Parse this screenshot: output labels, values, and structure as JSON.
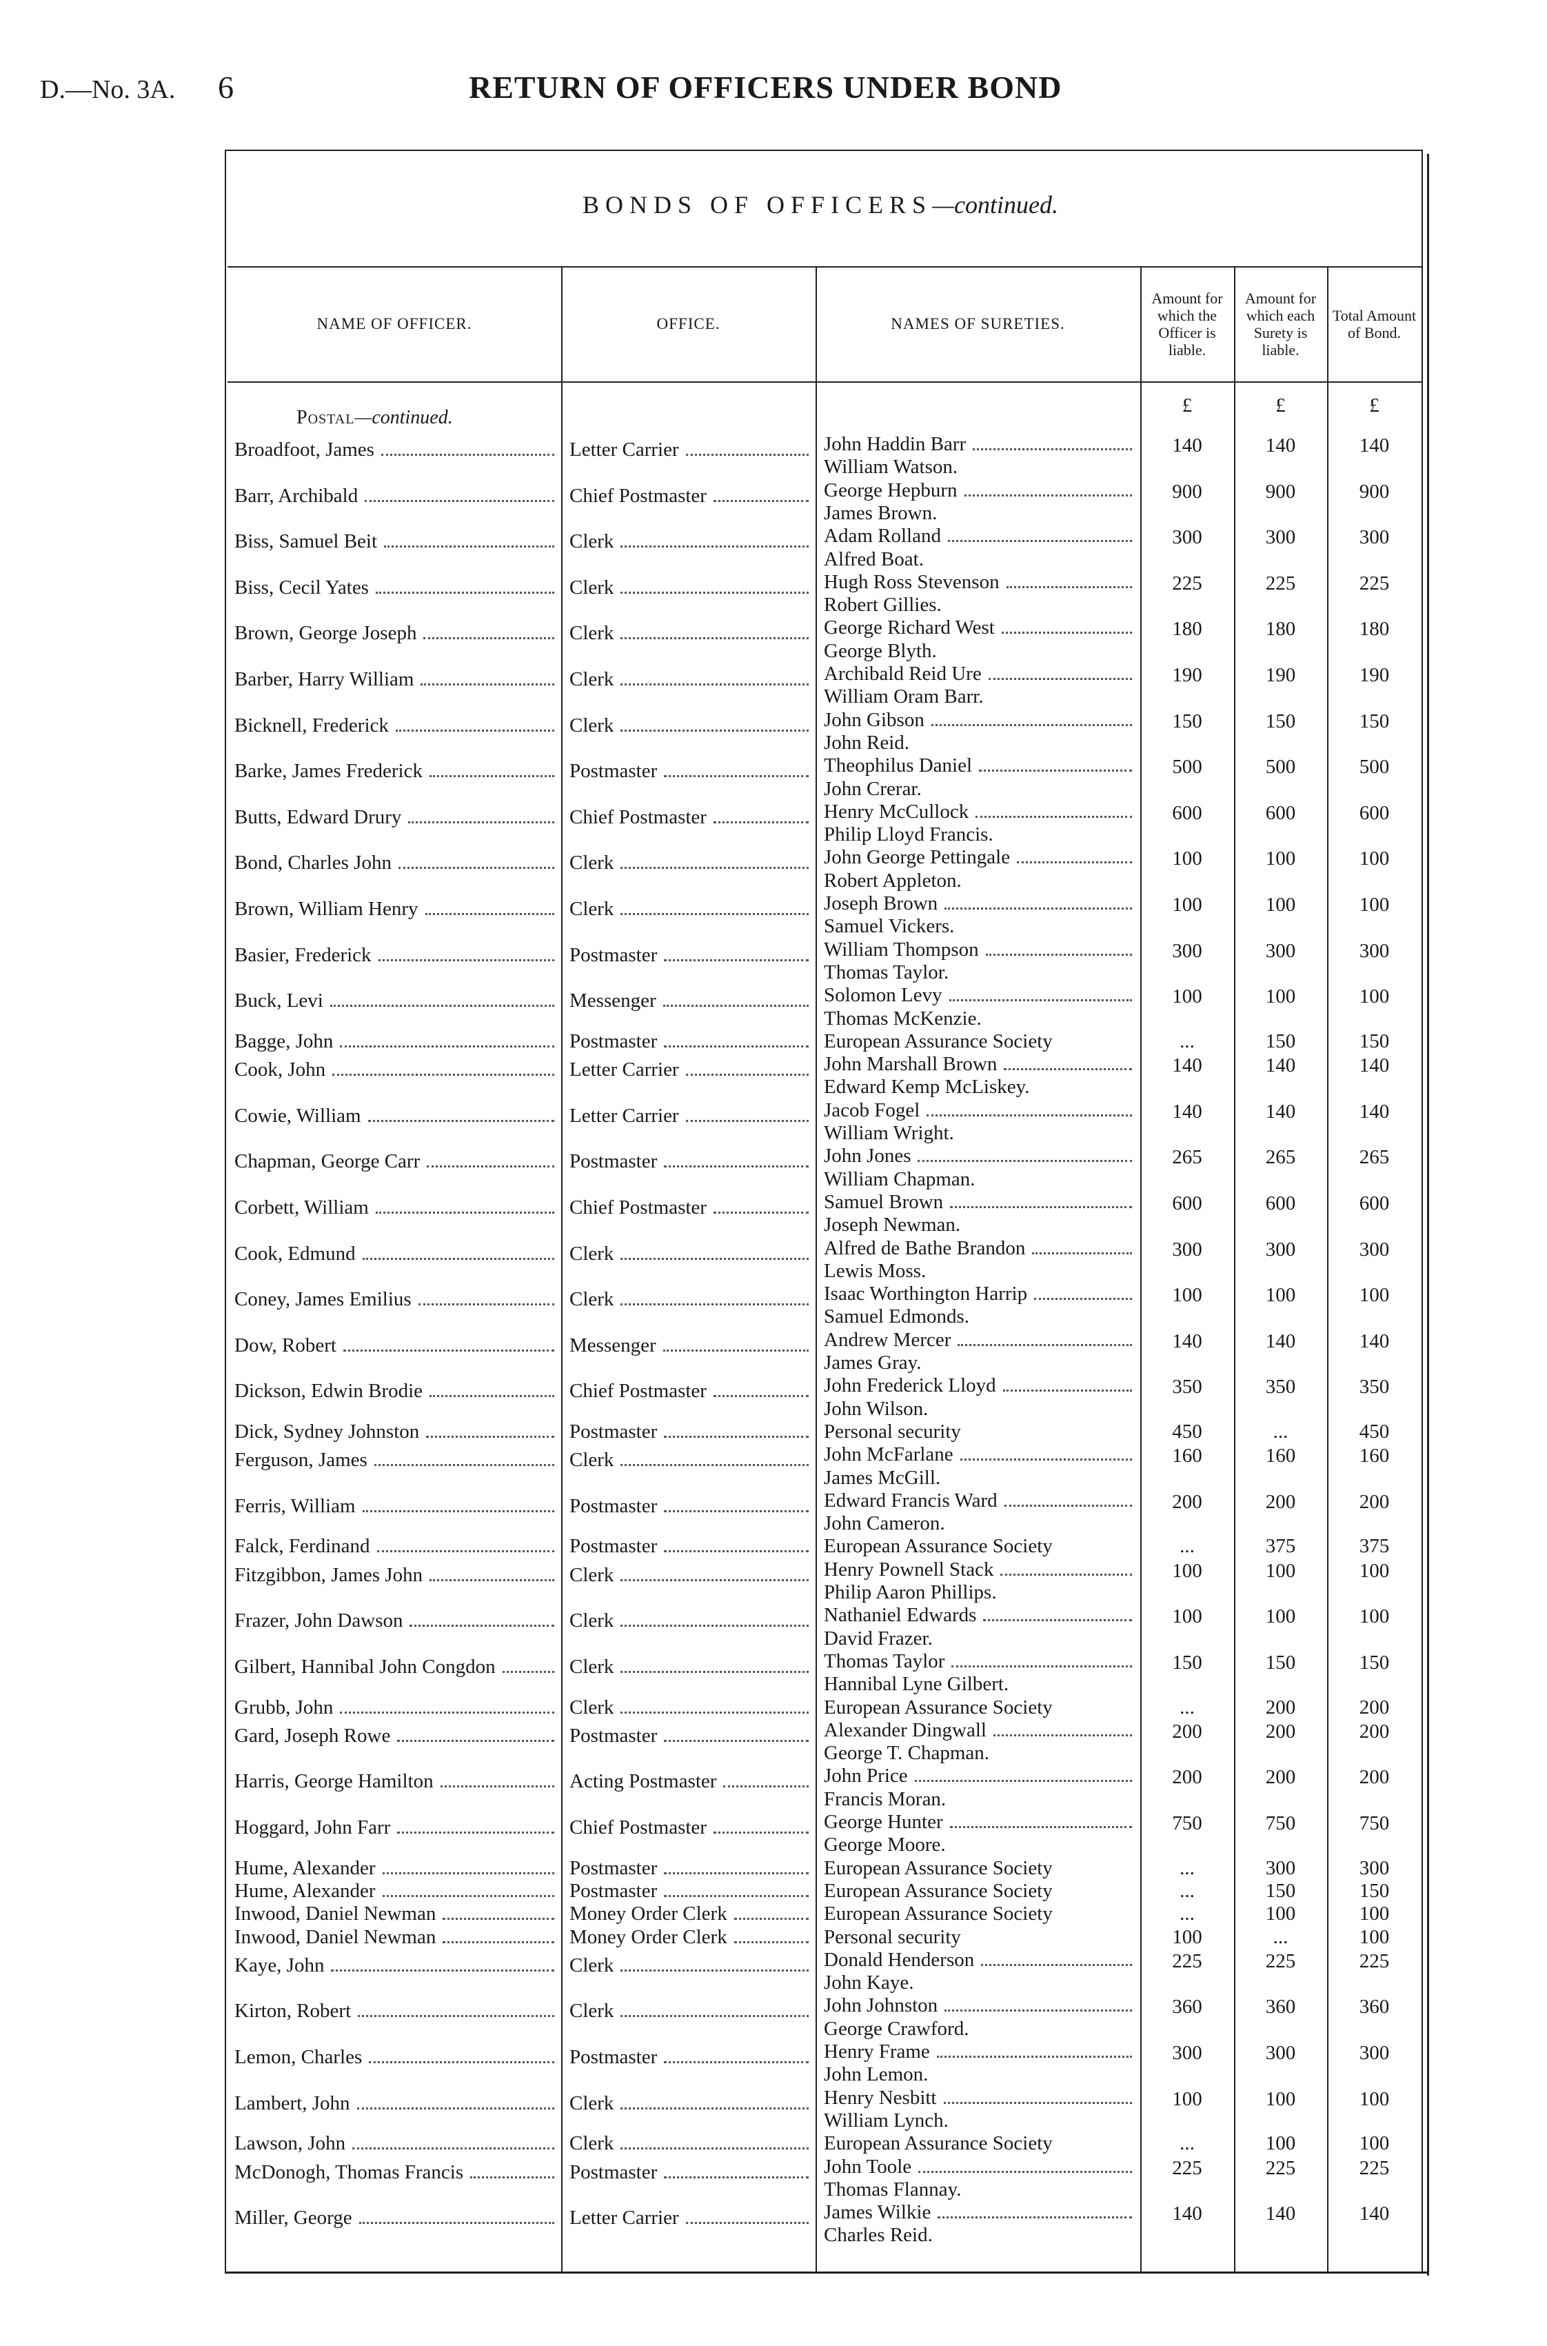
{
  "header": {
    "ref": "D.—No. 3A.",
    "page": "6",
    "title": "RETURN OF OFFICERS UNDER BOND"
  },
  "table": {
    "caption": "BONDS OF OFFICERS",
    "caption_suffix": "—continued.",
    "columns": [
      "NAME OF OFFICER.",
      "OFFICE.",
      "NAMES OF SURETIES.",
      "Amount for which the Officer is liable.",
      "Amount for which each Surety is liable.",
      "Total Amount of Bond."
    ],
    "section": "Postal",
    "section_suffix": "—continued.",
    "currency": [
      "£",
      "£",
      "£"
    ],
    "rows": [
      {
        "name": "Broadfoot, James",
        "office": "Letter Carrier",
        "sureties": [
          "John Haddin Barr",
          "William Watson."
        ],
        "officer": 140,
        "surety": 140,
        "total": 140
      },
      {
        "name": "Barr, Archibald",
        "office": "Chief Postmaster",
        "sureties": [
          "George Hepburn",
          "James Brown."
        ],
        "officer": 900,
        "surety": 900,
        "total": 900
      },
      {
        "name": "Biss, Samuel Beit",
        "office": "Clerk",
        "sureties": [
          "Adam Rolland",
          "Alfred Boat."
        ],
        "officer": 300,
        "surety": 300,
        "total": 300
      },
      {
        "name": "Biss, Cecil Yates",
        "office": "Clerk",
        "sureties": [
          "Hugh Ross Stevenson",
          "Robert Gillies."
        ],
        "officer": 225,
        "surety": 225,
        "total": 225
      },
      {
        "name": "Brown, George Joseph",
        "office": "Clerk",
        "sureties": [
          "George Richard West",
          "George Blyth."
        ],
        "officer": 180,
        "surety": 180,
        "total": 180
      },
      {
        "name": "Barber, Harry William",
        "office": "Clerk",
        "sureties": [
          "Archibald Reid Ure",
          "William Oram Barr."
        ],
        "officer": 190,
        "surety": 190,
        "total": 190
      },
      {
        "name": "Bicknell, Frederick",
        "office": "Clerk",
        "sureties": [
          "John Gibson",
          "John Reid."
        ],
        "officer": 150,
        "surety": 150,
        "total": 150
      },
      {
        "name": "Barke, James Frederick",
        "office": "Postmaster",
        "sureties": [
          "Theophilus Daniel",
          "John Crerar."
        ],
        "officer": 500,
        "surety": 500,
        "total": 500
      },
      {
        "name": "Butts, Edward Drury",
        "office": "Chief Postmaster",
        "sureties": [
          "Henry McCullock",
          "Philip Lloyd Francis."
        ],
        "officer": 600,
        "surety": 600,
        "total": 600
      },
      {
        "name": "Bond, Charles John",
        "office": "Clerk",
        "sureties": [
          "John George Pettingale",
          "Robert Appleton."
        ],
        "officer": 100,
        "surety": 100,
        "total": 100
      },
      {
        "name": "Brown, William Henry",
        "office": "Clerk",
        "sureties": [
          "Joseph Brown",
          "Samuel Vickers."
        ],
        "officer": 100,
        "surety": 100,
        "total": 100
      },
      {
        "name": "Basier, Frederick",
        "office": "Postmaster",
        "sureties": [
          "William Thompson",
          "Thomas Taylor."
        ],
        "officer": 300,
        "surety": 300,
        "total": 300
      },
      {
        "name": "Buck, Levi",
        "office": "Messenger",
        "sureties": [
          "Solomon Levy",
          "Thomas McKenzie."
        ],
        "officer": 100,
        "surety": 100,
        "total": 100
      },
      {
        "name": "Bagge, John",
        "office": "Postmaster",
        "sureties": [
          "European Assurance Society"
        ],
        "officer": "...",
        "surety": 150,
        "total": 150
      },
      {
        "name": "Cook, John",
        "office": "Letter Carrier",
        "sureties": [
          "John Marshall Brown",
          "Edward Kemp McLiskey."
        ],
        "officer": 140,
        "surety": 140,
        "total": 140
      },
      {
        "name": "Cowie, William",
        "office": "Letter Carrier",
        "sureties": [
          "Jacob Fogel",
          "William Wright."
        ],
        "officer": 140,
        "surety": 140,
        "total": 140
      },
      {
        "name": "Chapman, George Carr",
        "office": "Postmaster",
        "sureties": [
          "John Jones",
          "William Chapman."
        ],
        "officer": 265,
        "surety": 265,
        "total": 265
      },
      {
        "name": "Corbett, William",
        "office": "Chief Postmaster",
        "sureties": [
          "Samuel Brown",
          "Joseph Newman."
        ],
        "officer": 600,
        "surety": 600,
        "total": 600
      },
      {
        "name": "Cook, Edmund",
        "office": "Clerk",
        "sureties": [
          "Alfred de Bathe Brandon",
          "Lewis Moss."
        ],
        "officer": 300,
        "surety": 300,
        "total": 300
      },
      {
        "name": "Coney, James Emilius",
        "office": "Clerk",
        "sureties": [
          "Isaac Worthington Harrip",
          "Samuel Edmonds."
        ],
        "officer": 100,
        "surety": 100,
        "total": 100
      },
      {
        "name": "Dow, Robert",
        "office": "Messenger",
        "sureties": [
          "Andrew Mercer",
          "James Gray."
        ],
        "officer": 140,
        "surety": 140,
        "total": 140
      },
      {
        "name": "Dickson, Edwin Brodie",
        "office": "Chief Postmaster",
        "sureties": [
          "John Frederick Lloyd",
          "John Wilson."
        ],
        "officer": 350,
        "surety": 350,
        "total": 350
      },
      {
        "name": "Dick, Sydney Johnston",
        "office": "Postmaster",
        "sureties": [
          "Personal security"
        ],
        "officer": 450,
        "surety": "...",
        "total": 450
      },
      {
        "name": "Ferguson, James",
        "office": "Clerk",
        "sureties": [
          "John McFarlane",
          "James McGill."
        ],
        "officer": 160,
        "surety": 160,
        "total": 160
      },
      {
        "name": "Ferris, William",
        "office": "Postmaster",
        "sureties": [
          "Edward Francis Ward",
          "John Cameron."
        ],
        "officer": 200,
        "surety": 200,
        "total": 200
      },
      {
        "name": "Falck, Ferdinand",
        "office": "Postmaster",
        "sureties": [
          "European Assurance Society"
        ],
        "officer": "...",
        "surety": 375,
        "total": 375
      },
      {
        "name": "Fitzgibbon, James John",
        "office": "Clerk",
        "sureties": [
          "Henry Pownell Stack",
          "Philip Aaron Phillips."
        ],
        "officer": 100,
        "surety": 100,
        "total": 100
      },
      {
        "name": "Frazer, John Dawson",
        "office": "Clerk",
        "sureties": [
          "Nathaniel Edwards",
          "David Frazer."
        ],
        "officer": 100,
        "surety": 100,
        "total": 100
      },
      {
        "name": "Gilbert, Hannibal John Congdon",
        "office": "Clerk",
        "sureties": [
          "Thomas Taylor",
          "Hannibal Lyne Gilbert."
        ],
        "officer": 150,
        "surety": 150,
        "total": 150
      },
      {
        "name": "Grubb, John",
        "office": "Clerk",
        "sureties": [
          "European Assurance Society"
        ],
        "officer": "...",
        "surety": 200,
        "total": 200
      },
      {
        "name": "Gard, Joseph Rowe",
        "office": "Postmaster",
        "sureties": [
          "Alexander Dingwall",
          "George T. Chapman."
        ],
        "officer": 200,
        "surety": 200,
        "total": 200
      },
      {
        "name": "Harris, George Hamilton",
        "office": "Acting Postmaster",
        "sureties": [
          "John Price",
          "Francis Moran."
        ],
        "officer": 200,
        "surety": 200,
        "total": 200
      },
      {
        "name": "Hoggard, John Farr",
        "office": "Chief Postmaster",
        "sureties": [
          "George Hunter",
          "George Moore."
        ],
        "officer": 750,
        "surety": 750,
        "total": 750
      },
      {
        "name": "Hume, Alexander",
        "office": "Postmaster",
        "sureties": [
          "European Assurance Society"
        ],
        "officer": "...",
        "surety": 300,
        "total": 300
      },
      {
        "name": "Hume, Alexander",
        "office": "Postmaster",
        "sureties": [
          "European Assurance Society"
        ],
        "officer": "...",
        "surety": 150,
        "total": 150
      },
      {
        "name": "Inwood, Daniel Newman",
        "office": "Money Order Clerk",
        "sureties": [
          "European Assurance Society"
        ],
        "officer": "...",
        "surety": 100,
        "total": 100
      },
      {
        "name": "Inwood, Daniel Newman",
        "office": "Money Order Clerk",
        "sureties": [
          "Personal security"
        ],
        "officer": 100,
        "surety": "...",
        "total": 100
      },
      {
        "name": "Kaye, John",
        "office": "Clerk",
        "sureties": [
          "Donald Henderson",
          "John Kaye."
        ],
        "officer": 225,
        "surety": 225,
        "total": 225
      },
      {
        "name": "Kirton, Robert",
        "office": "Clerk",
        "sureties": [
          "John Johnston",
          "George Crawford."
        ],
        "officer": 360,
        "surety": 360,
        "total": 360
      },
      {
        "name": "Lemon, Charles",
        "office": "Postmaster",
        "sureties": [
          "Henry Frame",
          "John Lemon."
        ],
        "officer": 300,
        "surety": 300,
        "total": 300
      },
      {
        "name": "Lambert, John",
        "office": "Clerk",
        "sureties": [
          "Henry Nesbitt",
          "William Lynch."
        ],
        "officer": 100,
        "surety": 100,
        "total": 100
      },
      {
        "name": "Lawson, John",
        "office": "Clerk",
        "sureties": [
          "European Assurance Society"
        ],
        "officer": "...",
        "surety": 100,
        "total": 100
      },
      {
        "name": "McDonogh, Thomas Francis",
        "office": "Postmaster",
        "sureties": [
          "John Toole",
          "Thomas Flannay."
        ],
        "officer": 225,
        "surety": 225,
        "total": 225
      },
      {
        "name": "Miller, George",
        "office": "Letter Carrier",
        "sureties": [
          "James Wilkie",
          "Charles Reid."
        ],
        "officer": 140,
        "surety": 140,
        "total": 140
      }
    ]
  }
}
